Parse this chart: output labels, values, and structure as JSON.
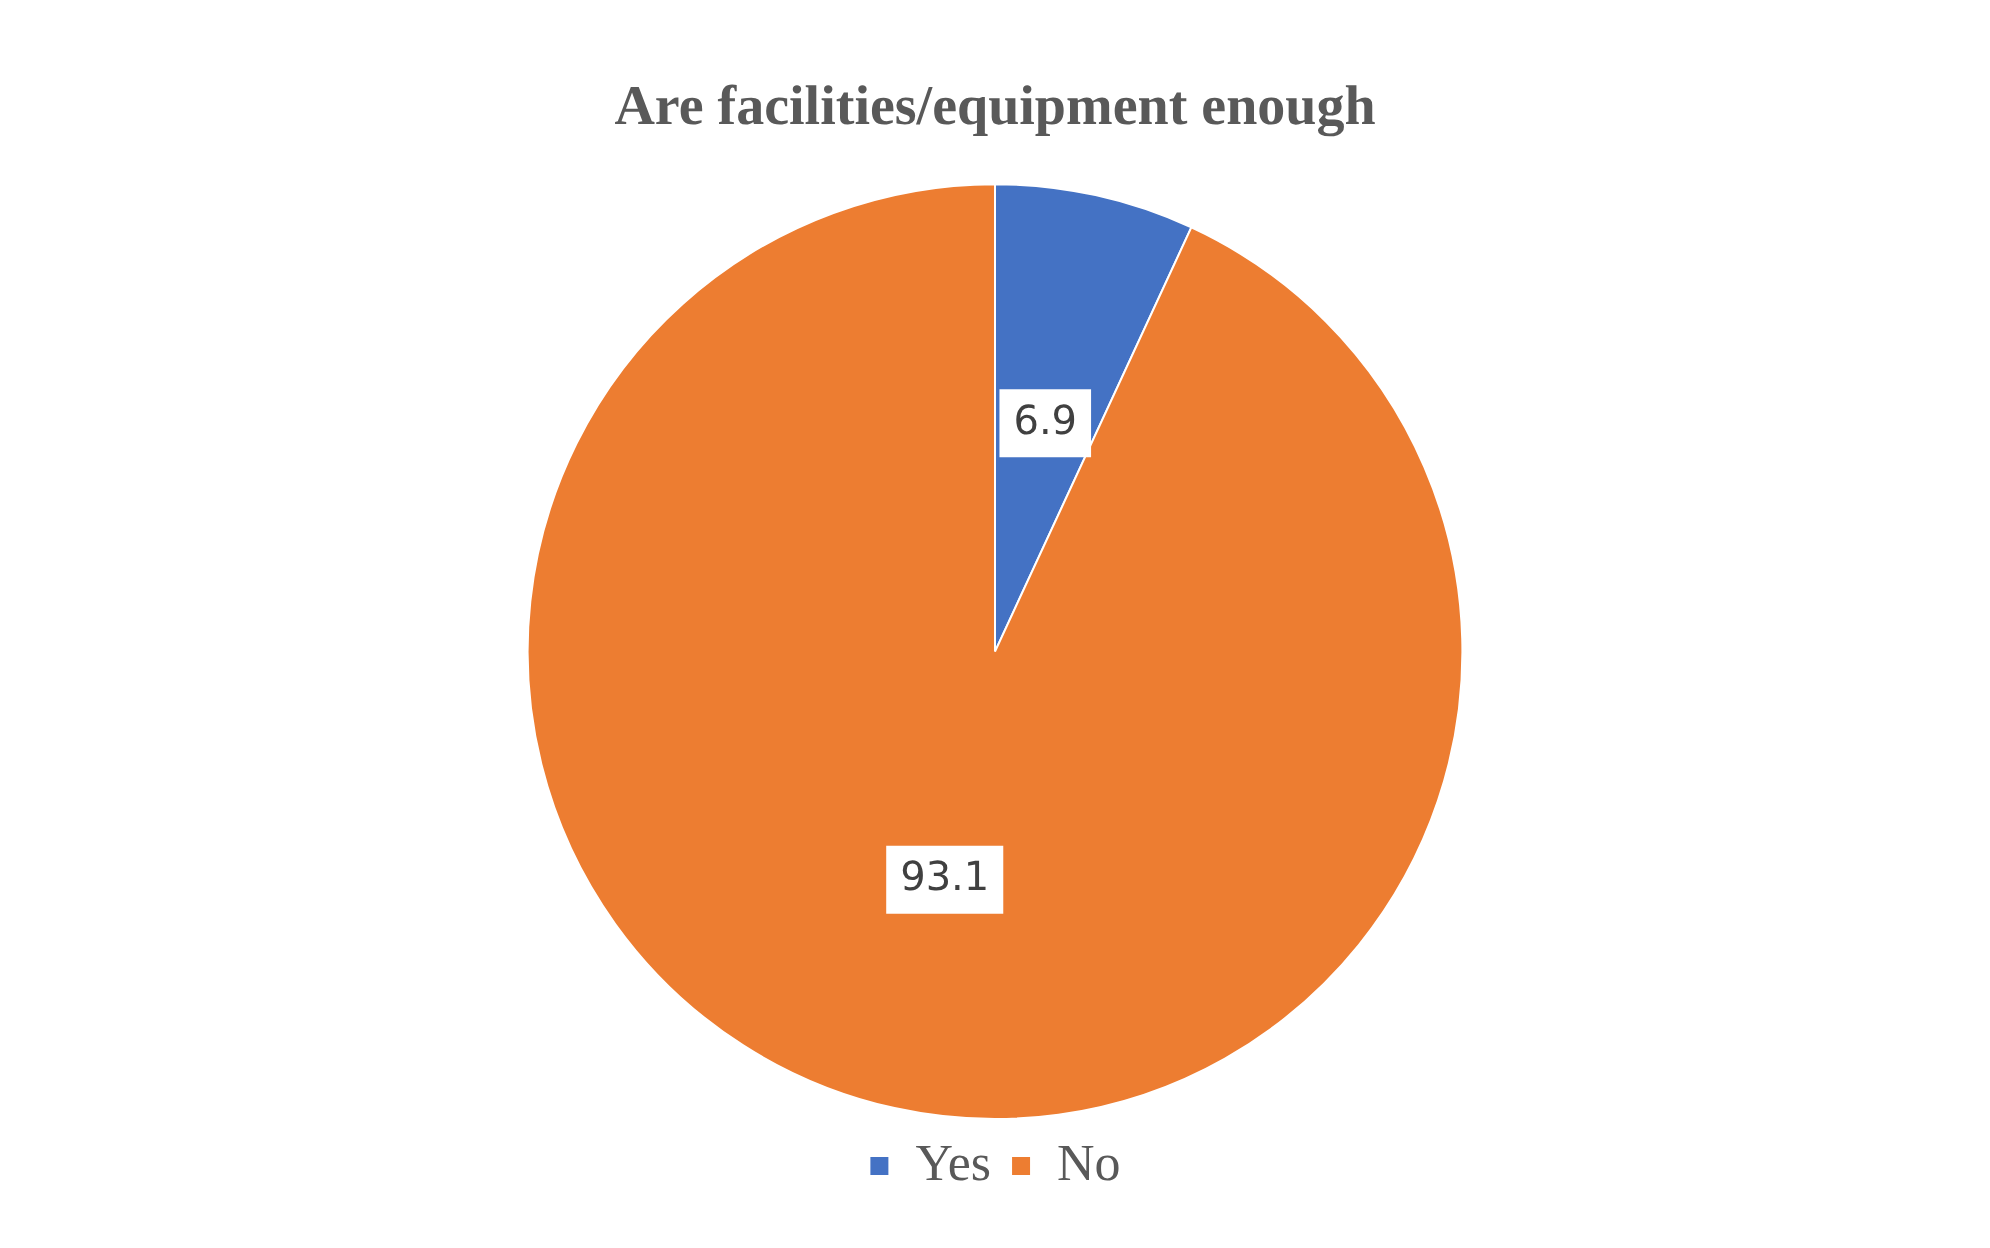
{
  "chart_data": {
    "type": "pie",
    "title": "Are facilities/equipment enough",
    "categories": [
      "Yes",
      "No"
    ],
    "values": [
      6.9,
      93.1
    ],
    "colors": [
      "#4472c4",
      "#ed7d31"
    ],
    "data_labels": true,
    "legend": "bottom"
  }
}
